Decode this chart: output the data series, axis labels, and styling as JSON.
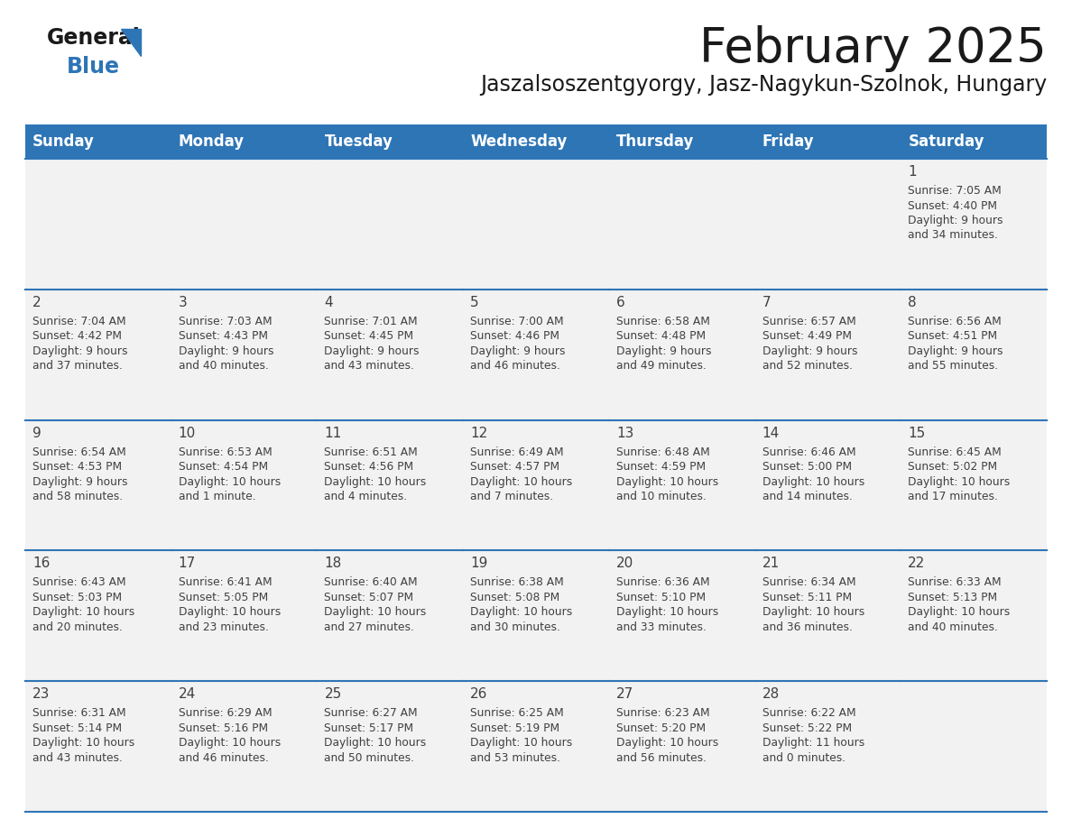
{
  "title": "February 2025",
  "subtitle": "Jaszalsoszentgyorgy, Jasz-Nagykun-Szolnok, Hungary",
  "days_of_week": [
    "Sunday",
    "Monday",
    "Tuesday",
    "Wednesday",
    "Thursday",
    "Friday",
    "Saturday"
  ],
  "header_bg": "#2e75b6",
  "header_text": "#ffffff",
  "cell_bg": "#f2f2f2",
  "cell_border": "#2e75b6",
  "text_color": "#404040",
  "title_color": "#1a1a1a",
  "subtitle_color": "#1a1a1a",
  "logo_general_color": "#1a1a1a",
  "logo_blue_color": "#2e75b6",
  "calendar_data": [
    {
      "day": 1,
      "col": 6,
      "row": 0,
      "sunrise": "7:05 AM",
      "sunset": "4:40 PM",
      "daylight_line1": "Daylight: 9 hours",
      "daylight_line2": "and 34 minutes."
    },
    {
      "day": 2,
      "col": 0,
      "row": 1,
      "sunrise": "7:04 AM",
      "sunset": "4:42 PM",
      "daylight_line1": "Daylight: 9 hours",
      "daylight_line2": "and 37 minutes."
    },
    {
      "day": 3,
      "col": 1,
      "row": 1,
      "sunrise": "7:03 AM",
      "sunset": "4:43 PM",
      "daylight_line1": "Daylight: 9 hours",
      "daylight_line2": "and 40 minutes."
    },
    {
      "day": 4,
      "col": 2,
      "row": 1,
      "sunrise": "7:01 AM",
      "sunset": "4:45 PM",
      "daylight_line1": "Daylight: 9 hours",
      "daylight_line2": "and 43 minutes."
    },
    {
      "day": 5,
      "col": 3,
      "row": 1,
      "sunrise": "7:00 AM",
      "sunset": "4:46 PM",
      "daylight_line1": "Daylight: 9 hours",
      "daylight_line2": "and 46 minutes."
    },
    {
      "day": 6,
      "col": 4,
      "row": 1,
      "sunrise": "6:58 AM",
      "sunset": "4:48 PM",
      "daylight_line1": "Daylight: 9 hours",
      "daylight_line2": "and 49 minutes."
    },
    {
      "day": 7,
      "col": 5,
      "row": 1,
      "sunrise": "6:57 AM",
      "sunset": "4:49 PM",
      "daylight_line1": "Daylight: 9 hours",
      "daylight_line2": "and 52 minutes."
    },
    {
      "day": 8,
      "col": 6,
      "row": 1,
      "sunrise": "6:56 AM",
      "sunset": "4:51 PM",
      "daylight_line1": "Daylight: 9 hours",
      "daylight_line2": "and 55 minutes."
    },
    {
      "day": 9,
      "col": 0,
      "row": 2,
      "sunrise": "6:54 AM",
      "sunset": "4:53 PM",
      "daylight_line1": "Daylight: 9 hours",
      "daylight_line2": "and 58 minutes."
    },
    {
      "day": 10,
      "col": 1,
      "row": 2,
      "sunrise": "6:53 AM",
      "sunset": "4:54 PM",
      "daylight_line1": "Daylight: 10 hours",
      "daylight_line2": "and 1 minute."
    },
    {
      "day": 11,
      "col": 2,
      "row": 2,
      "sunrise": "6:51 AM",
      "sunset": "4:56 PM",
      "daylight_line1": "Daylight: 10 hours",
      "daylight_line2": "and 4 minutes."
    },
    {
      "day": 12,
      "col": 3,
      "row": 2,
      "sunrise": "6:49 AM",
      "sunset": "4:57 PM",
      "daylight_line1": "Daylight: 10 hours",
      "daylight_line2": "and 7 minutes."
    },
    {
      "day": 13,
      "col": 4,
      "row": 2,
      "sunrise": "6:48 AM",
      "sunset": "4:59 PM",
      "daylight_line1": "Daylight: 10 hours",
      "daylight_line2": "and 10 minutes."
    },
    {
      "day": 14,
      "col": 5,
      "row": 2,
      "sunrise": "6:46 AM",
      "sunset": "5:00 PM",
      "daylight_line1": "Daylight: 10 hours",
      "daylight_line2": "and 14 minutes."
    },
    {
      "day": 15,
      "col": 6,
      "row": 2,
      "sunrise": "6:45 AM",
      "sunset": "5:02 PM",
      "daylight_line1": "Daylight: 10 hours",
      "daylight_line2": "and 17 minutes."
    },
    {
      "day": 16,
      "col": 0,
      "row": 3,
      "sunrise": "6:43 AM",
      "sunset": "5:03 PM",
      "daylight_line1": "Daylight: 10 hours",
      "daylight_line2": "and 20 minutes."
    },
    {
      "day": 17,
      "col": 1,
      "row": 3,
      "sunrise": "6:41 AM",
      "sunset": "5:05 PM",
      "daylight_line1": "Daylight: 10 hours",
      "daylight_line2": "and 23 minutes."
    },
    {
      "day": 18,
      "col": 2,
      "row": 3,
      "sunrise": "6:40 AM",
      "sunset": "5:07 PM",
      "daylight_line1": "Daylight: 10 hours",
      "daylight_line2": "and 27 minutes."
    },
    {
      "day": 19,
      "col": 3,
      "row": 3,
      "sunrise": "6:38 AM",
      "sunset": "5:08 PM",
      "daylight_line1": "Daylight: 10 hours",
      "daylight_line2": "and 30 minutes."
    },
    {
      "day": 20,
      "col": 4,
      "row": 3,
      "sunrise": "6:36 AM",
      "sunset": "5:10 PM",
      "daylight_line1": "Daylight: 10 hours",
      "daylight_line2": "and 33 minutes."
    },
    {
      "day": 21,
      "col": 5,
      "row": 3,
      "sunrise": "6:34 AM",
      "sunset": "5:11 PM",
      "daylight_line1": "Daylight: 10 hours",
      "daylight_line2": "and 36 minutes."
    },
    {
      "day": 22,
      "col": 6,
      "row": 3,
      "sunrise": "6:33 AM",
      "sunset": "5:13 PM",
      "daylight_line1": "Daylight: 10 hours",
      "daylight_line2": "and 40 minutes."
    },
    {
      "day": 23,
      "col": 0,
      "row": 4,
      "sunrise": "6:31 AM",
      "sunset": "5:14 PM",
      "daylight_line1": "Daylight: 10 hours",
      "daylight_line2": "and 43 minutes."
    },
    {
      "day": 24,
      "col": 1,
      "row": 4,
      "sunrise": "6:29 AM",
      "sunset": "5:16 PM",
      "daylight_line1": "Daylight: 10 hours",
      "daylight_line2": "and 46 minutes."
    },
    {
      "day": 25,
      "col": 2,
      "row": 4,
      "sunrise": "6:27 AM",
      "sunset": "5:17 PM",
      "daylight_line1": "Daylight: 10 hours",
      "daylight_line2": "and 50 minutes."
    },
    {
      "day": 26,
      "col": 3,
      "row": 4,
      "sunrise": "6:25 AM",
      "sunset": "5:19 PM",
      "daylight_line1": "Daylight: 10 hours",
      "daylight_line2": "and 53 minutes."
    },
    {
      "day": 27,
      "col": 4,
      "row": 4,
      "sunrise": "6:23 AM",
      "sunset": "5:20 PM",
      "daylight_line1": "Daylight: 10 hours",
      "daylight_line2": "and 56 minutes."
    },
    {
      "day": 28,
      "col": 5,
      "row": 4,
      "sunrise": "6:22 AM",
      "sunset": "5:22 PM",
      "daylight_line1": "Daylight: 11 hours",
      "daylight_line2": "and 0 minutes."
    }
  ]
}
